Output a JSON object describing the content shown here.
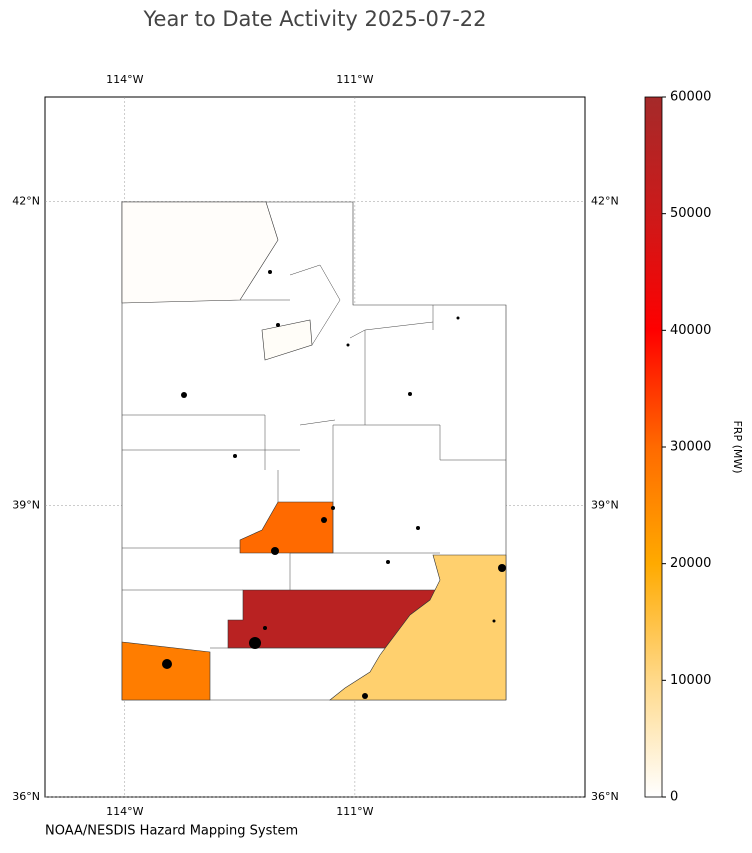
{
  "chart_data": {
    "type": "choropleth",
    "title": "Year to Date Activity 2025-07-22",
    "source": "NOAA/NESDIS Hazard Mapping System",
    "xlim": [
      -115.04,
      -108.0
    ],
    "ylim": [
      36,
      43
    ],
    "xticks": [
      {
        "value": -114,
        "label": "114°W"
      },
      {
        "value": -111,
        "label": "111°W"
      }
    ],
    "yticks": [
      {
        "value": 36,
        "label": "36°N"
      },
      {
        "value": 39,
        "label": "39°N"
      },
      {
        "value": 42,
        "label": "42°N"
      }
    ],
    "grid": true,
    "colorbar": {
      "label": "FRP (MW)",
      "clim": [
        0,
        60000
      ],
      "ticks": [
        0,
        10000,
        20000,
        30000,
        40000,
        50000,
        60000
      ],
      "colormap": [
        "#ffffff",
        "#ffd98a",
        "#ffaa00",
        "#ff6a00",
        "#ff0000",
        "#cc1a1a",
        "#a52a2a"
      ]
    },
    "values": [
      55000,
      30000,
      27000,
      12000,
      600,
      400
    ]
  }
}
